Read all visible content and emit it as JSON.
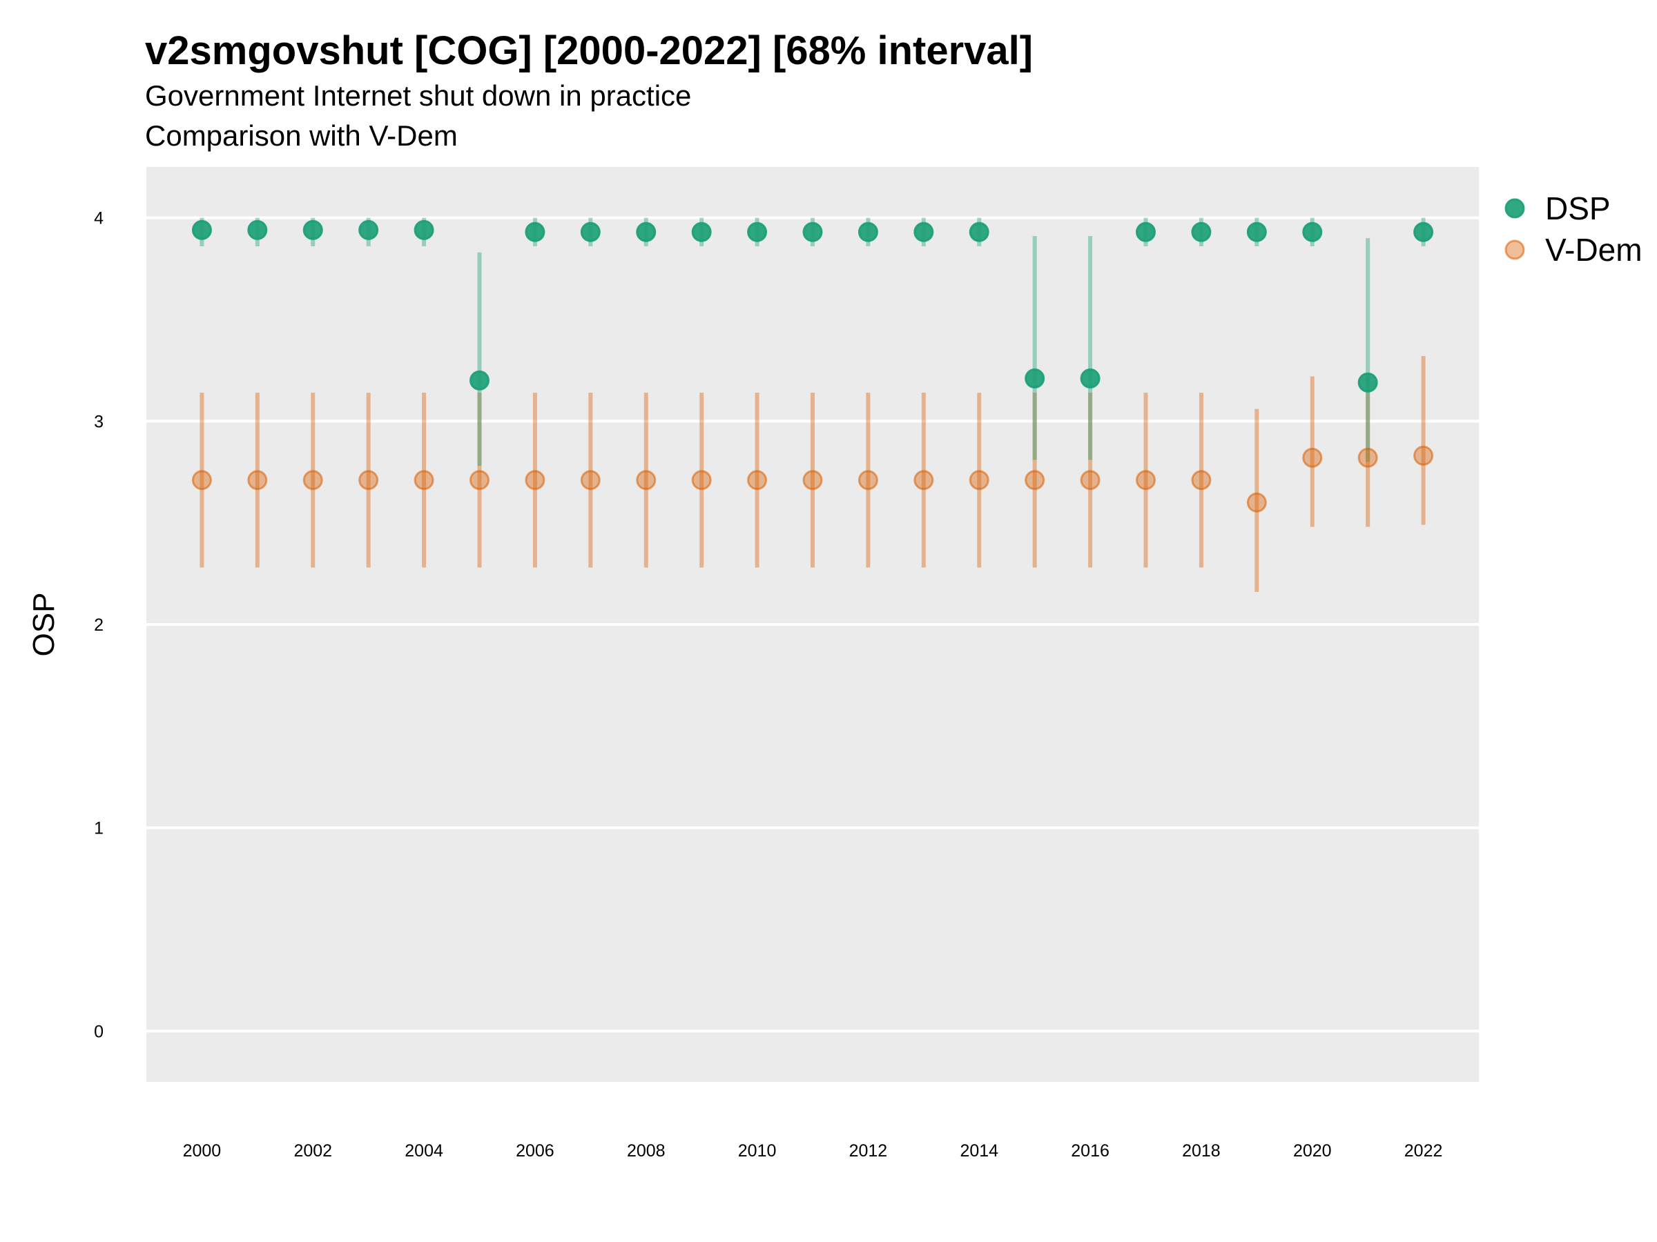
{
  "chart_data": {
    "type": "scatter",
    "title": "v2smgovshut [COG] [2000-2022] [68% interval]",
    "subtitle": "Government Internet shut down in practice",
    "subtitle2": "Comparison with V-Dem",
    "xlabel": "",
    "ylabel": "OSP",
    "xlim": [
      1999,
      2023
    ],
    "ylim": [
      -0.25,
      4.25
    ],
    "x_ticks": [
      "2000",
      "2002",
      "2004",
      "2006",
      "2008",
      "2010",
      "2012",
      "2014",
      "2016",
      "2018",
      "2020",
      "2022"
    ],
    "y_ticks": [
      "0",
      "1",
      "2",
      "3",
      "4"
    ],
    "grid": true,
    "legend_position": "right",
    "x": [
      2000,
      2001,
      2002,
      2003,
      2004,
      2005,
      2006,
      2007,
      2008,
      2009,
      2010,
      2011,
      2012,
      2013,
      2014,
      2015,
      2016,
      2017,
      2018,
      2019,
      2020,
      2021,
      2022
    ],
    "series": [
      {
        "name": "DSP",
        "color": "#1b9e77",
        "values": [
          3.94,
          3.94,
          3.94,
          3.94,
          3.94,
          3.2,
          3.93,
          3.93,
          3.93,
          3.93,
          3.93,
          3.93,
          3.93,
          3.93,
          3.93,
          3.21,
          3.21,
          3.93,
          3.93,
          3.93,
          3.93,
          3.19,
          3.93
        ],
        "lower": [
          3.86,
          3.86,
          3.86,
          3.86,
          3.86,
          2.78,
          3.86,
          3.86,
          3.86,
          3.86,
          3.86,
          3.86,
          3.86,
          3.86,
          3.86,
          2.81,
          2.81,
          3.86,
          3.86,
          3.86,
          3.86,
          2.8,
          3.86
        ],
        "upper": [
          4.0,
          4.0,
          4.0,
          4.0,
          4.0,
          3.83,
          4.0,
          4.0,
          4.0,
          4.0,
          4.0,
          4.0,
          4.0,
          4.0,
          4.0,
          3.91,
          3.91,
          4.0,
          4.0,
          4.0,
          4.0,
          3.9,
          4.0
        ]
      },
      {
        "name": "V-Dem",
        "color": "#d95f02",
        "values": [
          2.71,
          2.71,
          2.71,
          2.71,
          2.71,
          2.71,
          2.71,
          2.71,
          2.71,
          2.71,
          2.71,
          2.71,
          2.71,
          2.71,
          2.71,
          2.71,
          2.71,
          2.71,
          2.71,
          2.6,
          2.82,
          2.82,
          2.83
        ],
        "lower": [
          2.28,
          2.28,
          2.28,
          2.28,
          2.28,
          2.28,
          2.28,
          2.28,
          2.28,
          2.28,
          2.28,
          2.28,
          2.28,
          2.28,
          2.28,
          2.28,
          2.28,
          2.28,
          2.28,
          2.16,
          2.48,
          2.48,
          2.49
        ],
        "upper": [
          3.14,
          3.14,
          3.14,
          3.14,
          3.14,
          3.14,
          3.14,
          3.14,
          3.14,
          3.14,
          3.14,
          3.14,
          3.14,
          3.14,
          3.14,
          3.14,
          3.14,
          3.14,
          3.14,
          3.06,
          3.22,
          3.22,
          3.32
        ]
      }
    ]
  }
}
